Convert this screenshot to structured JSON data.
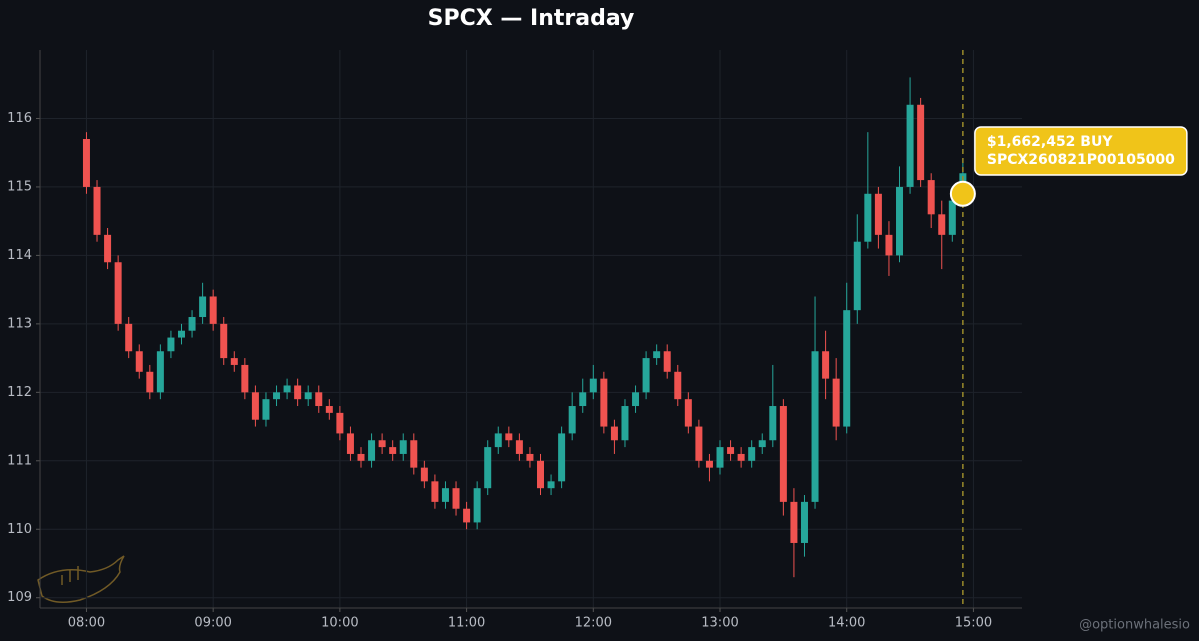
{
  "chart_data": {
    "type": "candlestick",
    "title": "SPCX — Intraday",
    "x": [
      "08:00",
      "08:05",
      "08:10",
      "08:15",
      "08:20",
      "08:25",
      "08:30",
      "08:35",
      "08:40",
      "08:45",
      "08:50",
      "08:55",
      "09:00",
      "09:05",
      "09:10",
      "09:15",
      "09:20",
      "09:25",
      "09:30",
      "09:35",
      "09:40",
      "09:45",
      "09:50",
      "09:55",
      "10:00",
      "10:05",
      "10:10",
      "10:15",
      "10:20",
      "10:25",
      "10:30",
      "10:35",
      "10:40",
      "10:45",
      "10:50",
      "10:55",
      "11:00",
      "11:05",
      "11:10",
      "11:15",
      "11:20",
      "11:25",
      "11:30",
      "11:35",
      "11:40",
      "11:45",
      "11:50",
      "11:55",
      "12:00",
      "12:05",
      "12:10",
      "12:15",
      "12:20",
      "12:25",
      "12:30",
      "12:35",
      "12:40",
      "12:45",
      "12:50",
      "12:55",
      "13:00",
      "13:05",
      "13:10",
      "13:15",
      "13:20",
      "13:25",
      "13:30",
      "13:35",
      "13:40",
      "13:45",
      "13:50",
      "13:55",
      "14:00",
      "14:05",
      "14:10",
      "14:15",
      "14:20",
      "14:25",
      "14:30",
      "14:35",
      "14:40",
      "14:45",
      "14:50",
      "14:55"
    ],
    "open": [
      115.7,
      115.0,
      114.3,
      113.9,
      113.0,
      112.6,
      112.3,
      112.0,
      112.6,
      112.8,
      112.9,
      113.1,
      113.4,
      113.0,
      112.5,
      112.4,
      112.0,
      111.6,
      111.9,
      112.0,
      112.1,
      111.9,
      112.0,
      111.8,
      111.7,
      111.4,
      111.1,
      111.0,
      111.3,
      111.2,
      111.1,
      111.3,
      110.9,
      110.7,
      110.4,
      110.6,
      110.3,
      110.1,
      110.6,
      111.2,
      111.4,
      111.3,
      111.1,
      111.0,
      110.6,
      110.7,
      111.4,
      111.8,
      112.0,
      112.2,
      111.5,
      111.3,
      111.8,
      112.0,
      112.5,
      112.6,
      112.3,
      111.9,
      111.5,
      111.0,
      110.9,
      111.2,
      111.1,
      111.0,
      111.2,
      111.3,
      111.8,
      110.4,
      109.8,
      110.4,
      112.6,
      112.2,
      111.5,
      113.2,
      114.2,
      114.9,
      114.3,
      114.0,
      115.0,
      116.2,
      115.1,
      114.6,
      114.3,
      114.8
    ],
    "high": [
      115.8,
      115.1,
      114.4,
      114.0,
      113.1,
      112.7,
      112.4,
      112.7,
      112.9,
      113.0,
      113.2,
      113.6,
      113.5,
      113.1,
      112.6,
      112.5,
      112.1,
      112.0,
      112.1,
      112.2,
      112.2,
      112.1,
      112.1,
      111.9,
      111.8,
      111.5,
      111.2,
      111.4,
      111.4,
      111.3,
      111.4,
      111.4,
      111.0,
      110.8,
      110.7,
      110.7,
      110.4,
      110.7,
      111.3,
      111.5,
      111.5,
      111.4,
      111.2,
      111.1,
      110.8,
      111.5,
      112.0,
      112.2,
      112.4,
      112.3,
      111.6,
      111.9,
      112.1,
      112.6,
      112.7,
      112.7,
      112.4,
      112.0,
      111.6,
      111.1,
      111.3,
      111.3,
      111.2,
      111.3,
      111.4,
      112.4,
      111.9,
      110.6,
      110.5,
      113.4,
      112.9,
      112.5,
      113.6,
      114.6,
      115.8,
      115.0,
      114.5,
      115.3,
      116.6,
      116.3,
      115.2,
      114.8,
      115.0,
      115.4
    ],
    "low": [
      114.9,
      114.2,
      113.8,
      112.9,
      112.5,
      112.2,
      111.9,
      111.9,
      112.5,
      112.7,
      112.8,
      113.0,
      112.9,
      112.4,
      112.3,
      111.9,
      111.5,
      111.5,
      111.8,
      111.9,
      111.8,
      111.8,
      111.7,
      111.6,
      111.3,
      111.0,
      110.9,
      110.9,
      111.1,
      111.0,
      111.0,
      110.8,
      110.6,
      110.3,
      110.3,
      110.2,
      110.0,
      110.0,
      110.5,
      111.1,
      111.2,
      111.0,
      110.9,
      110.5,
      110.5,
      110.6,
      111.3,
      111.7,
      111.9,
      111.4,
      111.1,
      111.2,
      111.7,
      111.9,
      112.4,
      112.2,
      111.8,
      111.4,
      110.9,
      110.7,
      110.8,
      111.0,
      110.9,
      110.9,
      111.1,
      111.2,
      110.2,
      109.3,
      109.6,
      110.3,
      111.9,
      111.3,
      111.4,
      113.0,
      114.1,
      114.1,
      113.7,
      113.9,
      114.9,
      115.0,
      114.4,
      113.8,
      114.2,
      114.7
    ],
    "close": [
      115.0,
      114.3,
      113.9,
      113.0,
      112.6,
      112.3,
      112.0,
      112.6,
      112.8,
      112.9,
      113.1,
      113.4,
      113.0,
      112.5,
      112.4,
      112.0,
      111.6,
      111.9,
      112.0,
      112.1,
      111.9,
      112.0,
      111.8,
      111.7,
      111.4,
      111.1,
      111.0,
      111.3,
      111.2,
      111.1,
      111.3,
      110.9,
      110.7,
      110.4,
      110.6,
      110.3,
      110.1,
      110.6,
      111.2,
      111.4,
      111.3,
      111.1,
      111.0,
      110.6,
      110.7,
      111.4,
      111.8,
      112.0,
      112.2,
      111.5,
      111.3,
      111.8,
      112.0,
      112.5,
      112.6,
      112.3,
      111.9,
      111.5,
      111.0,
      110.9,
      111.2,
      111.1,
      111.0,
      111.2,
      111.3,
      111.8,
      110.4,
      109.8,
      110.4,
      112.6,
      112.2,
      111.5,
      113.2,
      114.2,
      114.9,
      114.3,
      114.0,
      115.0,
      116.2,
      115.1,
      114.6,
      114.3,
      114.8,
      115.2
    ],
    "up_color": "#26a69a",
    "down_color": "#ef5350",
    "xlim": [
      "07:38",
      "15:23"
    ],
    "xticks": [
      "08:00",
      "09:00",
      "10:00",
      "11:00",
      "12:00",
      "13:00",
      "14:00",
      "15:00"
    ],
    "ylim": [
      108.85,
      117
    ],
    "yticks": [
      109,
      110,
      111,
      112,
      113,
      114,
      115,
      116
    ],
    "grid": true,
    "annotation": {
      "x": "14:55",
      "y": 114.9,
      "color": "#f0c419",
      "lines": [
        "$1,662,452 BUY",
        "SPCX260821P00105000"
      ]
    },
    "credit": "@optionwhalesio"
  }
}
